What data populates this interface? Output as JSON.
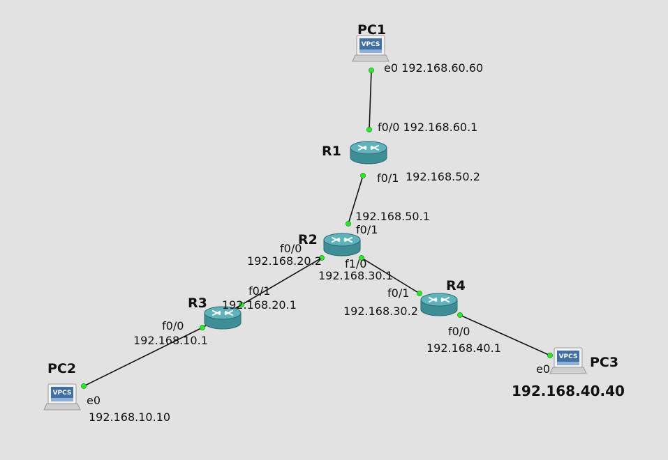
{
  "colors": {
    "background": "#e2e2e2",
    "link": "#111111",
    "port_up": "#22ee22",
    "router_body": "#3d8e95",
    "router_top": "#5fb4bb",
    "vpcs_badge": "#3f6fa8"
  },
  "devices": {
    "pc1": {
      "name": "PC1",
      "icon": "vpcs-icon",
      "badge": "VPCS"
    },
    "pc2": {
      "name": "PC2",
      "icon": "vpcs-icon",
      "badge": "VPCS"
    },
    "pc3": {
      "name": "PC3",
      "icon": "vpcs-icon",
      "badge": "VPCS"
    },
    "r1": {
      "name": "R1",
      "icon": "router-icon"
    },
    "r2": {
      "name": "R2",
      "icon": "router-icon"
    },
    "r3": {
      "name": "R3",
      "icon": "router-icon"
    },
    "r4": {
      "name": "R4",
      "icon": "router-icon"
    }
  },
  "links": [
    {
      "from": "PC1",
      "to": "R1",
      "from_port": "e0",
      "to_port": "f0/0"
    },
    {
      "from": "R1",
      "to": "R2",
      "from_port": "f0/1",
      "to_port": "f0/1"
    },
    {
      "from": "R2",
      "to": "R3",
      "from_port": "f0/0",
      "to_port": "f0/1"
    },
    {
      "from": "R2",
      "to": "R4",
      "from_port": "f1/0",
      "to_port": "f0/1"
    },
    {
      "from": "R3",
      "to": "PC2",
      "from_port": "f0/0",
      "to_port": "e0"
    },
    {
      "from": "R4",
      "to": "PC3",
      "from_port": "f0/0",
      "to_port": "e0"
    }
  ],
  "labels": {
    "pc1_e0": "e0 192.168.60.60",
    "r1_f00": "f0/0 192.168.60.1",
    "r1_f01_port": "f0/1",
    "r1_f01_ip": "192.168.50.2",
    "r2_f01_ip": "192.168.50.1",
    "r2_f01_port": "f0/1",
    "r2_f00_port": "f0/0",
    "r2_f00_ip": "192.168.20.2",
    "r2_f10_port": "f1/0",
    "r2_f10_ip": "192.168.30.1",
    "r3_f01_port": "f0/1",
    "r3_f01_ip": "192.168.20.1",
    "r3_f00_port": "f0/0",
    "r3_f00_ip": "192.168.10.1",
    "r4_f01_port": "f0/1",
    "r4_f01_ip": "192.168.30.2",
    "r4_f00_port": "f0/0",
    "r4_f00_ip": "192.168.40.1",
    "pc2_e0_port": "e0",
    "pc2_e0_ip": "192.168.10.10",
    "pc3_e0_port": "e0",
    "pc3_ip": "192.168.40.40"
  }
}
